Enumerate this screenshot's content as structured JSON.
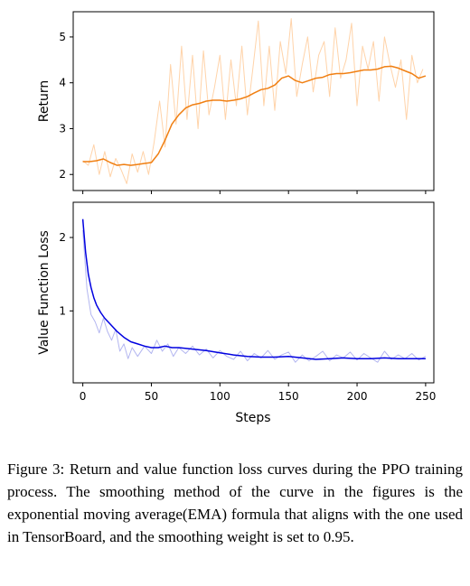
{
  "chart_data": [
    {
      "type": "line",
      "ylabel": "Return",
      "xlabel": "",
      "xlim": [
        -7,
        256
      ],
      "ylim": [
        1.65,
        5.55
      ],
      "yticks": [
        2,
        3,
        4,
        5
      ],
      "xticks": [
        0,
        50,
        100,
        150,
        200,
        250
      ],
      "colors": {
        "raw": "#ffd3a9",
        "smoothed": "#f07f12"
      },
      "smoothed": {
        "x": [
          0,
          5,
          10,
          15,
          20,
          25,
          30,
          35,
          40,
          45,
          50,
          55,
          60,
          65,
          70,
          75,
          80,
          85,
          90,
          95,
          100,
          105,
          110,
          115,
          120,
          125,
          130,
          135,
          140,
          145,
          150,
          155,
          160,
          165,
          170,
          175,
          180,
          185,
          190,
          195,
          200,
          205,
          210,
          215,
          220,
          225,
          230,
          235,
          240,
          245,
          250
        ],
        "y": [
          2.28,
          2.28,
          2.3,
          2.34,
          2.26,
          2.2,
          2.22,
          2.2,
          2.22,
          2.24,
          2.26,
          2.45,
          2.75,
          3.1,
          3.3,
          3.45,
          3.52,
          3.55,
          3.6,
          3.62,
          3.62,
          3.6,
          3.62,
          3.65,
          3.7,
          3.78,
          3.85,
          3.88,
          3.95,
          4.1,
          4.15,
          4.05,
          4.0,
          4.05,
          4.1,
          4.12,
          4.18,
          4.2,
          4.2,
          4.22,
          4.25,
          4.28,
          4.28,
          4.3,
          4.35,
          4.36,
          4.32,
          4.26,
          4.2,
          4.1,
          4.15
        ]
      },
      "raw": {
        "x": [
          0,
          4,
          8,
          12,
          16,
          20,
          24,
          28,
          32,
          36,
          40,
          44,
          48,
          52,
          56,
          60,
          64,
          68,
          72,
          76,
          80,
          84,
          88,
          92,
          96,
          100,
          104,
          108,
          112,
          116,
          120,
          124,
          128,
          132,
          136,
          140,
          144,
          148,
          152,
          156,
          160,
          164,
          168,
          172,
          176,
          180,
          184,
          188,
          192,
          196,
          200,
          204,
          208,
          212,
          216,
          220,
          224,
          228,
          232,
          236,
          240,
          244,
          248
        ],
        "y": [
          2.3,
          2.2,
          2.65,
          2.0,
          2.5,
          1.95,
          2.35,
          2.1,
          1.8,
          2.45,
          2.05,
          2.5,
          2.0,
          2.7,
          3.6,
          2.6,
          4.4,
          3.1,
          4.8,
          3.2,
          4.6,
          3.0,
          4.7,
          3.3,
          3.9,
          4.6,
          3.2,
          4.5,
          3.5,
          4.8,
          3.3,
          4.3,
          5.35,
          3.5,
          4.8,
          3.4,
          4.9,
          4.2,
          5.4,
          3.7,
          4.4,
          5.0,
          3.8,
          4.6,
          4.9,
          3.7,
          5.2,
          4.1,
          4.5,
          5.3,
          3.5,
          4.8,
          4.3,
          4.9,
          3.6,
          5.0,
          4.4,
          3.9,
          4.5,
          3.2,
          4.6,
          4.0,
          4.3
        ]
      }
    },
    {
      "type": "line",
      "ylabel": "Value Function Loss",
      "xlabel": "Steps",
      "xlim": [
        -7,
        256
      ],
      "ylim": [
        0.02,
        2.48
      ],
      "yticks": [
        1,
        2
      ],
      "xticks": [
        0,
        50,
        100,
        150,
        200,
        250
      ],
      "colors": {
        "raw": "#b3b6f0",
        "smoothed": "#0000e0"
      },
      "smoothed": {
        "x": [
          0,
          2,
          4,
          6,
          8,
          10,
          13,
          16,
          20,
          25,
          30,
          35,
          40,
          45,
          50,
          55,
          60,
          65,
          70,
          80,
          90,
          100,
          110,
          120,
          130,
          140,
          150,
          160,
          170,
          180,
          190,
          200,
          210,
          220,
          230,
          240,
          250
        ],
        "y": [
          2.25,
          1.8,
          1.5,
          1.32,
          1.18,
          1.08,
          0.98,
          0.9,
          0.82,
          0.72,
          0.64,
          0.58,
          0.55,
          0.52,
          0.5,
          0.5,
          0.52,
          0.5,
          0.5,
          0.48,
          0.46,
          0.43,
          0.4,
          0.38,
          0.37,
          0.37,
          0.38,
          0.36,
          0.34,
          0.35,
          0.36,
          0.35,
          0.35,
          0.36,
          0.35,
          0.35,
          0.35
        ]
      },
      "raw": {
        "x": [
          0,
          3,
          6,
          9,
          12,
          15,
          18,
          21,
          24,
          27,
          30,
          33,
          36,
          40,
          45,
          50,
          54,
          58,
          62,
          66,
          70,
          75,
          80,
          85,
          90,
          95,
          100,
          105,
          110,
          115,
          120,
          125,
          130,
          135,
          140,
          145,
          150,
          155,
          160,
          165,
          170,
          175,
          180,
          185,
          190,
          195,
          200,
          205,
          210,
          215,
          220,
          225,
          230,
          235,
          240,
          245,
          250
        ],
        "y": [
          2.1,
          1.3,
          0.95,
          0.85,
          0.7,
          0.9,
          0.72,
          0.6,
          0.75,
          0.45,
          0.55,
          0.35,
          0.5,
          0.38,
          0.52,
          0.42,
          0.6,
          0.45,
          0.55,
          0.38,
          0.5,
          0.42,
          0.52,
          0.4,
          0.48,
          0.36,
          0.46,
          0.38,
          0.34,
          0.45,
          0.32,
          0.42,
          0.36,
          0.46,
          0.34,
          0.4,
          0.44,
          0.3,
          0.4,
          0.32,
          0.38,
          0.45,
          0.32,
          0.4,
          0.36,
          0.44,
          0.33,
          0.42,
          0.36,
          0.3,
          0.45,
          0.34,
          0.4,
          0.35,
          0.42,
          0.33,
          0.38
        ]
      }
    }
  ],
  "caption": "Figure 3: Return and value function loss curves during the PPO training process. The smoothing method of the curve in the figures is the exponential moving average(EMA) formula that aligns with the one used in TensorBoard, and the smoothing weight is set to 0.95."
}
